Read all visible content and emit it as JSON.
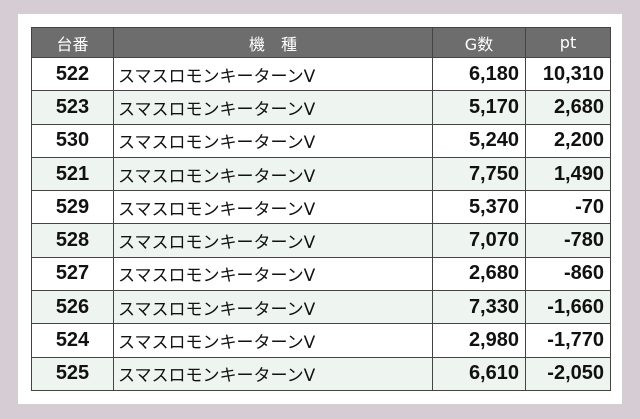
{
  "header": {
    "number": "台番",
    "model": "機　種",
    "games": "G数",
    "points": "pt"
  },
  "rows": [
    {
      "number": "522",
      "model": "スマスロモンキーターンV",
      "games": "6,180",
      "points": "10,310"
    },
    {
      "number": "523",
      "model": "スマスロモンキーターンV",
      "games": "5,170",
      "points": "2,680"
    },
    {
      "number": "530",
      "model": "スマスロモンキーターンV",
      "games": "5,240",
      "points": "2,200"
    },
    {
      "number": "521",
      "model": "スマスロモンキーターンV",
      "games": "7,750",
      "points": "1,490"
    },
    {
      "number": "529",
      "model": "スマスロモンキーターンV",
      "games": "5,370",
      "points": "-70"
    },
    {
      "number": "528",
      "model": "スマスロモンキーターンV",
      "games": "7,070",
      "points": "-780"
    },
    {
      "number": "527",
      "model": "スマスロモンキーターンV",
      "games": "2,680",
      "points": "-860"
    },
    {
      "number": "526",
      "model": "スマスロモンキーターンV",
      "games": "7,330",
      "points": "-1,660"
    },
    {
      "number": "524",
      "model": "スマスロモンキーターンV",
      "games": "2,980",
      "points": "-1,770"
    },
    {
      "number": "525",
      "model": "スマスロモンキーターンV",
      "games": "6,610",
      "points": "-2,050"
    }
  ],
  "colors": {
    "header_bg": "#6e6d6e",
    "alt_row_bg": "#eef5f0",
    "page_bg": "#d6ccd4"
  }
}
